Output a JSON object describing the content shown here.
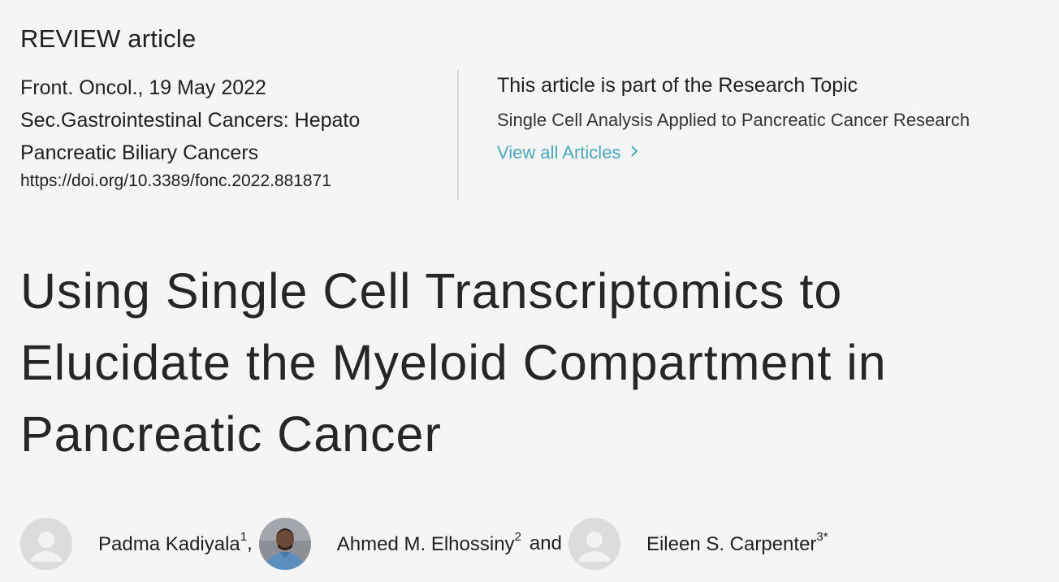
{
  "article_type": "REVIEW article",
  "meta": {
    "journal_date": "Front. Oncol., 19 May 2022",
    "section_line1": "Sec.Gastrointestinal Cancers: Hepato",
    "section_line2": "Pancreatic Biliary Cancers",
    "doi": "https://doi.org/10.3389/fonc.2022.881871"
  },
  "research_topic": {
    "heading": "This article is part of the Research Topic",
    "name": "Single Cell Analysis Applied to Pancreatic Cancer Research",
    "view_all_label": "View all Articles"
  },
  "title": {
    "line1": "Using Single Cell Transcriptomics to",
    "line2": "Elucidate the Myeloid Compartment in",
    "line3": "Pancreatic Cancer"
  },
  "authors": [
    {
      "name": "Padma Kadiyala",
      "affil": "1",
      "separator": ",",
      "avatar": "placeholder-avatar-icon"
    },
    {
      "name": "Ahmed M. Elhossiny",
      "affil": "2",
      "separator": "and",
      "avatar": "photo"
    },
    {
      "name": "Eileen S. Carpenter",
      "affil": "3*",
      "separator": "",
      "avatar": "placeholder-avatar-icon"
    }
  ],
  "colors": {
    "link": "#4ba8bd",
    "background": "#f5f5f5",
    "text": "#1f1f1f"
  }
}
